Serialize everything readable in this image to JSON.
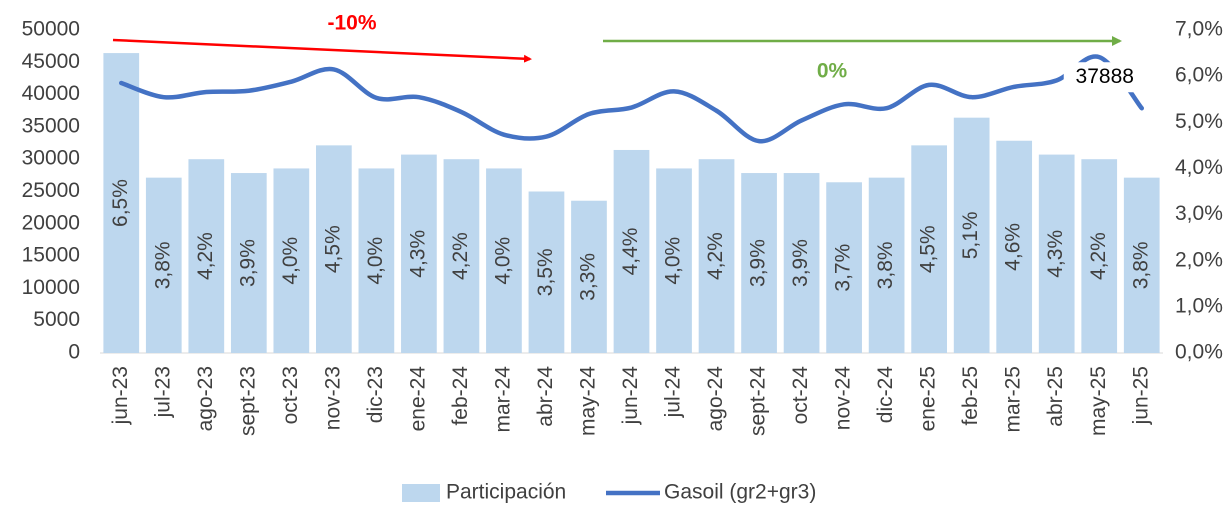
{
  "chart_data": {
    "type": "bar-line",
    "categories": [
      "jun-23",
      "jul-23",
      "ago-23",
      "sept-23",
      "oct-23",
      "nov-23",
      "dic-23",
      "ene-24",
      "feb-24",
      "mar-24",
      "abr-24",
      "may-24",
      "jun-24",
      "jul-24",
      "ago-24",
      "sept-24",
      "oct-24",
      "nov-24",
      "dic-24",
      "ene-25",
      "feb-25",
      "mar-25",
      "abr-25",
      "may-25",
      "jun-25"
    ],
    "series": [
      {
        "name": "Participación",
        "color": "#bdd7ee",
        "axis": "y2",
        "values": [
          6.5,
          3.8,
          4.2,
          3.9,
          4.0,
          4.5,
          4.0,
          4.3,
          4.2,
          4.0,
          3.5,
          3.3,
          4.4,
          4.0,
          4.2,
          3.9,
          3.9,
          3.7,
          3.8,
          4.5,
          5.1,
          4.6,
          4.3,
          4.2,
          3.8
        ],
        "value_labels": [
          "6,5%",
          "3,8%",
          "4,2%",
          "3,9%",
          "4,0%",
          "4,5%",
          "4,0%",
          "4,3%",
          "4,2%",
          "4,0%",
          "3,5%",
          "3,3%",
          "4,4%",
          "4,0%",
          "4,2%",
          "3,9%",
          "3,9%",
          "3,7%",
          "3,8%",
          "4,5%",
          "5,1%",
          "4,6%",
          "4,3%",
          "4,2%",
          "3,8%"
        ]
      },
      {
        "name": "Gasoil (gr2+gr3)",
        "color": "#4472c4",
        "axis": "y",
        "values": [
          41800,
          39600,
          40400,
          40600,
          42000,
          43900,
          39500,
          39600,
          37300,
          33800,
          33500,
          37000,
          38000,
          40500,
          37500,
          32800,
          36000,
          38500,
          37900,
          41500,
          39600,
          41200,
          42200,
          45800,
          37888
        ],
        "value_labels": [
          null,
          null,
          null,
          null,
          null,
          null,
          null,
          null,
          null,
          null,
          null,
          null,
          null,
          null,
          null,
          null,
          null,
          null,
          null,
          null,
          null,
          null,
          null,
          null,
          "37888"
        ]
      }
    ],
    "ylim": [
      0,
      50000
    ],
    "yticks": [
      0,
      5000,
      10000,
      15000,
      20000,
      25000,
      30000,
      35000,
      40000,
      45000,
      50000
    ],
    "y2lim": [
      0,
      7
    ],
    "y2ticks": [
      {
        "value": 0,
        "label": "0,0%"
      },
      {
        "value": 1,
        "label": "1,0%"
      },
      {
        "value": 2,
        "label": "2,0%"
      },
      {
        "value": 3,
        "label": "3,0%"
      },
      {
        "value": 4,
        "label": "4,0%"
      },
      {
        "value": 5,
        "label": "5,0%"
      },
      {
        "value": 6,
        "label": "6,0%"
      },
      {
        "value": 7,
        "label": "7,0%"
      }
    ],
    "annotations": [
      {
        "text": "-10%",
        "color": "#ff0000"
      },
      {
        "text": "0%",
        "color": "#70ad47"
      }
    ],
    "legend": "bottom"
  }
}
